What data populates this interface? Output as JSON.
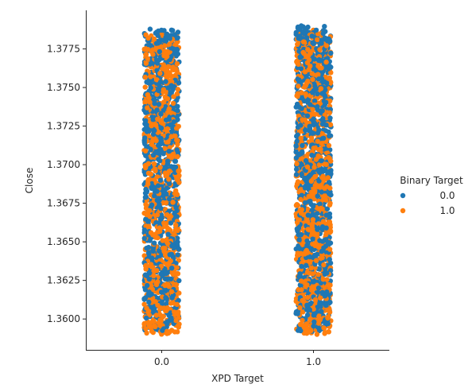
{
  "chart_data": {
    "type": "scatter",
    "subtype": "strip",
    "title": "",
    "xlabel": "XPD Target",
    "ylabel": "Close",
    "categories": [
      "0.0",
      "1.0"
    ],
    "ylim": [
      1.358,
      1.38
    ],
    "yticks": [
      "1.3600",
      "1.3625",
      "1.3650",
      "1.3675",
      "1.3700",
      "1.3725",
      "1.3750",
      "1.3775"
    ],
    "grid": false,
    "spines": "left-bottom",
    "legend": {
      "title": "Binary Target",
      "placement": "right",
      "entries": [
        {
          "label": "0.0",
          "color": "#1f77b4"
        },
        {
          "label": "1.0",
          "color": "#ff7f0e"
        }
      ]
    },
    "series": [
      {
        "name": "0.0",
        "color": "#1f77b4",
        "groups": [
          {
            "category": "0.0",
            "y_min": 1.3592,
            "y_max": 1.3788
          },
          {
            "category": "1.0",
            "y_min": 1.3592,
            "y_max": 1.379
          }
        ]
      },
      {
        "name": "1.0",
        "color": "#ff7f0e",
        "groups": [
          {
            "category": "0.0",
            "y_min": 1.359,
            "y_max": 1.3785
          },
          {
            "category": "1.0",
            "y_min": 1.359,
            "y_max": 1.3788
          }
        ]
      }
    ]
  }
}
